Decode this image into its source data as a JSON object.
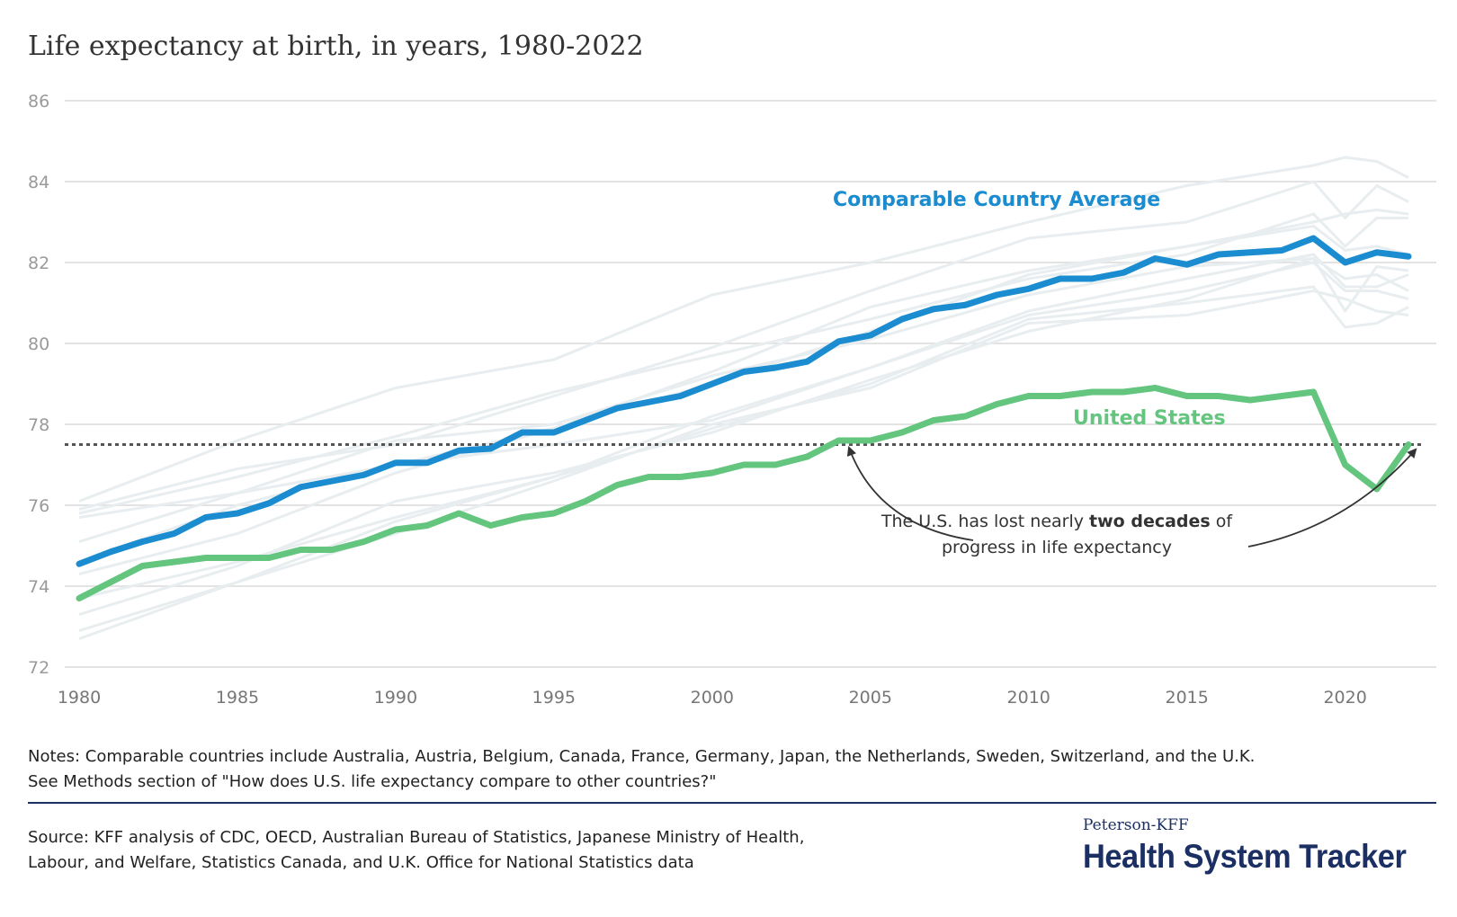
{
  "title": "Life expectancy at birth, in years, 1980-2022",
  "notes": [
    "Notes: Comparable countries include Australia, Austria, Belgium, Canada, France, Germany, Japan, the Netherlands, Sweden, Switzerland, and the U.K.",
    "See Methods section of \"How does U.S. life expectancy compare to other countries?\""
  ],
  "source": [
    "Source: KFF analysis of CDC, OECD, Australian Bureau of Statistics, Japanese Ministry of Health,",
    "Labour, and Welfare, Statistics Canada, and U.K. Office for National Statistics data"
  ],
  "logo": {
    "top": "Peterson-KFF",
    "main": "Health System Tracker"
  },
  "annotation": {
    "pre": "The U.S. has lost nearly ",
    "bold": "two decades",
    "post": " of",
    "line2": "progress in life expectancy"
  },
  "chart_data": {
    "type": "line",
    "title": "Life expectancy at birth, in years, 1980-2022",
    "xlim": [
      1980,
      2022
    ],
    "ylim": [
      72,
      86
    ],
    "x_ticks": [
      "1980",
      "1985",
      "1990",
      "1995",
      "2000",
      "2005",
      "2010",
      "2015",
      "2020"
    ],
    "y_ticks": [
      "72",
      "74",
      "76",
      "78",
      "80",
      "82",
      "84",
      "86"
    ],
    "grid": true,
    "reference_line": {
      "y": 77.5,
      "style": "dotted"
    },
    "colors": {
      "average": "#1a8ccf",
      "us": "#63c57e",
      "countries": "#e8edf0",
      "reference": "#555555"
    },
    "x": [
      1980,
      1981,
      1982,
      1983,
      1984,
      1985,
      1986,
      1987,
      1988,
      1989,
      1990,
      1991,
      1992,
      1993,
      1994,
      1995,
      1996,
      1997,
      1998,
      1999,
      2000,
      2001,
      2002,
      2003,
      2004,
      2005,
      2006,
      2007,
      2008,
      2009,
      2010,
      2011,
      2012,
      2013,
      2014,
      2015,
      2016,
      2017,
      2018,
      2019,
      2020,
      2021,
      2022
    ],
    "series": [
      {
        "name": "Comparable Country Average",
        "values": [
          74.55,
          74.85,
          75.1,
          75.3,
          75.7,
          75.8,
          76.05,
          76.45,
          76.6,
          76.75,
          77.05,
          77.05,
          77.35,
          77.4,
          77.8,
          77.8,
          78.1,
          78.4,
          78.55,
          78.7,
          79.0,
          79.3,
          79.4,
          79.55,
          80.05,
          80.2,
          80.6,
          80.85,
          80.95,
          81.2,
          81.35,
          81.6,
          81.6,
          81.75,
          82.1,
          81.95,
          82.2,
          82.25,
          82.3,
          82.6,
          82.0,
          82.25,
          82.15
        ]
      },
      {
        "name": "United States",
        "values": [
          73.7,
          74.1,
          74.5,
          74.6,
          74.7,
          74.7,
          74.7,
          74.9,
          74.9,
          75.1,
          75.4,
          75.5,
          75.8,
          75.5,
          75.7,
          75.8,
          76.1,
          76.5,
          76.7,
          76.7,
          76.8,
          77.0,
          77.0,
          77.2,
          77.6,
          77.6,
          77.8,
          78.1,
          78.2,
          78.5,
          78.7,
          78.7,
          78.8,
          78.8,
          78.9,
          78.7,
          78.7,
          78.6,
          78.7,
          78.8,
          77.0,
          76.4,
          77.5
        ]
      }
    ],
    "country_lines": {
      "x": [
        1980,
        1985,
        1990,
        1995,
        2000,
        2005,
        2010,
        2015,
        2019,
        2020,
        2021,
        2022
      ],
      "values": [
        [
          76.1,
          77.6,
          78.9,
          79.6,
          81.2,
          82.0,
          83.0,
          83.9,
          84.4,
          84.6,
          84.5,
          84.1
        ],
        [
          75.9,
          76.9,
          77.5,
          78.7,
          79.9,
          81.3,
          82.6,
          83.0,
          84.0,
          83.1,
          83.9,
          83.5
        ],
        [
          75.8,
          76.7,
          77.7,
          78.8,
          79.7,
          80.6,
          81.6,
          82.2,
          83.2,
          82.4,
          83.1,
          83.1
        ],
        [
          74.6,
          76.0,
          77.0,
          77.9,
          79.3,
          80.9,
          81.8,
          82.4,
          83.0,
          83.2,
          83.3,
          83.2
        ],
        [
          74.3,
          75.3,
          76.8,
          77.9,
          79.0,
          80.3,
          81.7,
          82.4,
          82.9,
          82.3,
          82.4,
          82.2
        ],
        [
          75.1,
          76.3,
          77.6,
          78.0,
          79.2,
          80.1,
          81.2,
          81.9,
          82.1,
          81.6,
          81.7,
          81.3
        ],
        [
          75.7,
          76.3,
          77.0,
          77.5,
          78.1,
          79.4,
          80.8,
          81.6,
          82.2,
          81.4,
          81.4,
          81.7
        ],
        [
          72.9,
          74.1,
          75.6,
          76.7,
          78.2,
          79.4,
          80.7,
          81.3,
          82.0,
          81.3,
          81.3,
          81.1
        ],
        [
          73.3,
          74.5,
          76.1,
          76.8,
          77.8,
          79.1,
          80.3,
          81.1,
          82.1,
          80.8,
          81.9,
          81.8
        ],
        [
          73.7,
          74.6,
          75.7,
          76.7,
          77.9,
          79.0,
          80.6,
          81.0,
          81.4,
          80.4,
          80.5,
          80.9
        ],
        [
          72.7,
          74.1,
          75.3,
          76.6,
          78.0,
          78.9,
          80.5,
          80.7,
          81.3,
          81.1,
          80.8,
          80.7
        ]
      ]
    }
  }
}
